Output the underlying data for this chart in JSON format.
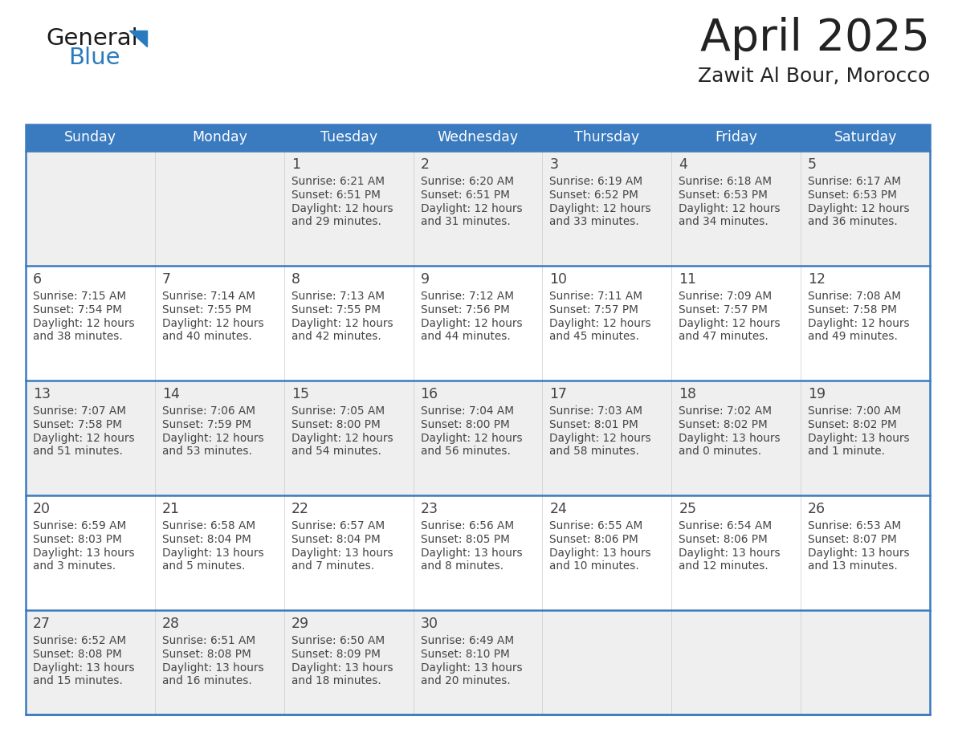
{
  "title": "April 2025",
  "subtitle": "Zawit Al Bour, Morocco",
  "days_of_week": [
    "Sunday",
    "Monday",
    "Tuesday",
    "Wednesday",
    "Thursday",
    "Friday",
    "Saturday"
  ],
  "header_bg": "#3a7abf",
  "header_text": "#ffffff",
  "row_bg_light": "#efefef",
  "row_bg_white": "#ffffff",
  "separator_color": "#3a7abf",
  "text_color": "#444444",
  "title_color": "#222222",
  "calendar_data": [
    [
      {
        "day": "",
        "sunrise": "",
        "sunset": "",
        "daylight": ""
      },
      {
        "day": "",
        "sunrise": "",
        "sunset": "",
        "daylight": ""
      },
      {
        "day": "1",
        "sunrise": "6:21 AM",
        "sunset": "6:51 PM",
        "daylight_line1": "Daylight: 12 hours",
        "daylight_line2": "and 29 minutes."
      },
      {
        "day": "2",
        "sunrise": "6:20 AM",
        "sunset": "6:51 PM",
        "daylight_line1": "Daylight: 12 hours",
        "daylight_line2": "and 31 minutes."
      },
      {
        "day": "3",
        "sunrise": "6:19 AM",
        "sunset": "6:52 PM",
        "daylight_line1": "Daylight: 12 hours",
        "daylight_line2": "and 33 minutes."
      },
      {
        "day": "4",
        "sunrise": "6:18 AM",
        "sunset": "6:53 PM",
        "daylight_line1": "Daylight: 12 hours",
        "daylight_line2": "and 34 minutes."
      },
      {
        "day": "5",
        "sunrise": "6:17 AM",
        "sunset": "6:53 PM",
        "daylight_line1": "Daylight: 12 hours",
        "daylight_line2": "and 36 minutes."
      }
    ],
    [
      {
        "day": "6",
        "sunrise": "7:15 AM",
        "sunset": "7:54 PM",
        "daylight_line1": "Daylight: 12 hours",
        "daylight_line2": "and 38 minutes."
      },
      {
        "day": "7",
        "sunrise": "7:14 AM",
        "sunset": "7:55 PM",
        "daylight_line1": "Daylight: 12 hours",
        "daylight_line2": "and 40 minutes."
      },
      {
        "day": "8",
        "sunrise": "7:13 AM",
        "sunset": "7:55 PM",
        "daylight_line1": "Daylight: 12 hours",
        "daylight_line2": "and 42 minutes."
      },
      {
        "day": "9",
        "sunrise": "7:12 AM",
        "sunset": "7:56 PM",
        "daylight_line1": "Daylight: 12 hours",
        "daylight_line2": "and 44 minutes."
      },
      {
        "day": "10",
        "sunrise": "7:11 AM",
        "sunset": "7:57 PM",
        "daylight_line1": "Daylight: 12 hours",
        "daylight_line2": "and 45 minutes."
      },
      {
        "day": "11",
        "sunrise": "7:09 AM",
        "sunset": "7:57 PM",
        "daylight_line1": "Daylight: 12 hours",
        "daylight_line2": "and 47 minutes."
      },
      {
        "day": "12",
        "sunrise": "7:08 AM",
        "sunset": "7:58 PM",
        "daylight_line1": "Daylight: 12 hours",
        "daylight_line2": "and 49 minutes."
      }
    ],
    [
      {
        "day": "13",
        "sunrise": "7:07 AM",
        "sunset": "7:58 PM",
        "daylight_line1": "Daylight: 12 hours",
        "daylight_line2": "and 51 minutes."
      },
      {
        "day": "14",
        "sunrise": "7:06 AM",
        "sunset": "7:59 PM",
        "daylight_line1": "Daylight: 12 hours",
        "daylight_line2": "and 53 minutes."
      },
      {
        "day": "15",
        "sunrise": "7:05 AM",
        "sunset": "8:00 PM",
        "daylight_line1": "Daylight: 12 hours",
        "daylight_line2": "and 54 minutes."
      },
      {
        "day": "16",
        "sunrise": "7:04 AM",
        "sunset": "8:00 PM",
        "daylight_line1": "Daylight: 12 hours",
        "daylight_line2": "and 56 minutes."
      },
      {
        "day": "17",
        "sunrise": "7:03 AM",
        "sunset": "8:01 PM",
        "daylight_line1": "Daylight: 12 hours",
        "daylight_line2": "and 58 minutes."
      },
      {
        "day": "18",
        "sunrise": "7:02 AM",
        "sunset": "8:02 PM",
        "daylight_line1": "Daylight: 13 hours",
        "daylight_line2": "and 0 minutes."
      },
      {
        "day": "19",
        "sunrise": "7:00 AM",
        "sunset": "8:02 PM",
        "daylight_line1": "Daylight: 13 hours",
        "daylight_line2": "and 1 minute."
      }
    ],
    [
      {
        "day": "20",
        "sunrise": "6:59 AM",
        "sunset": "8:03 PM",
        "daylight_line1": "Daylight: 13 hours",
        "daylight_line2": "and 3 minutes."
      },
      {
        "day": "21",
        "sunrise": "6:58 AM",
        "sunset": "8:04 PM",
        "daylight_line1": "Daylight: 13 hours",
        "daylight_line2": "and 5 minutes."
      },
      {
        "day": "22",
        "sunrise": "6:57 AM",
        "sunset": "8:04 PM",
        "daylight_line1": "Daylight: 13 hours",
        "daylight_line2": "and 7 minutes."
      },
      {
        "day": "23",
        "sunrise": "6:56 AM",
        "sunset": "8:05 PM",
        "daylight_line1": "Daylight: 13 hours",
        "daylight_line2": "and 8 minutes."
      },
      {
        "day": "24",
        "sunrise": "6:55 AM",
        "sunset": "8:06 PM",
        "daylight_line1": "Daylight: 13 hours",
        "daylight_line2": "and 10 minutes."
      },
      {
        "day": "25",
        "sunrise": "6:54 AM",
        "sunset": "8:06 PM",
        "daylight_line1": "Daylight: 13 hours",
        "daylight_line2": "and 12 minutes."
      },
      {
        "day": "26",
        "sunrise": "6:53 AM",
        "sunset": "8:07 PM",
        "daylight_line1": "Daylight: 13 hours",
        "daylight_line2": "and 13 minutes."
      }
    ],
    [
      {
        "day": "27",
        "sunrise": "6:52 AM",
        "sunset": "8:08 PM",
        "daylight_line1": "Daylight: 13 hours",
        "daylight_line2": "and 15 minutes."
      },
      {
        "day": "28",
        "sunrise": "6:51 AM",
        "sunset": "8:08 PM",
        "daylight_line1": "Daylight: 13 hours",
        "daylight_line2": "and 16 minutes."
      },
      {
        "day": "29",
        "sunrise": "6:50 AM",
        "sunset": "8:09 PM",
        "daylight_line1": "Daylight: 13 hours",
        "daylight_line2": "and 18 minutes."
      },
      {
        "day": "30",
        "sunrise": "6:49 AM",
        "sunset": "8:10 PM",
        "daylight_line1": "Daylight: 13 hours",
        "daylight_line2": "and 20 minutes."
      },
      {
        "day": "",
        "sunrise": "",
        "sunset": "",
        "daylight_line1": "",
        "daylight_line2": ""
      },
      {
        "day": "",
        "sunrise": "",
        "sunset": "",
        "daylight_line1": "",
        "daylight_line2": ""
      },
      {
        "day": "",
        "sunrise": "",
        "sunset": "",
        "daylight_line1": "",
        "daylight_line2": ""
      }
    ]
  ],
  "logo_general_color": "#1a1a1a",
  "logo_blue_color": "#2a7abf",
  "logo_triangle_color": "#2a7abf"
}
